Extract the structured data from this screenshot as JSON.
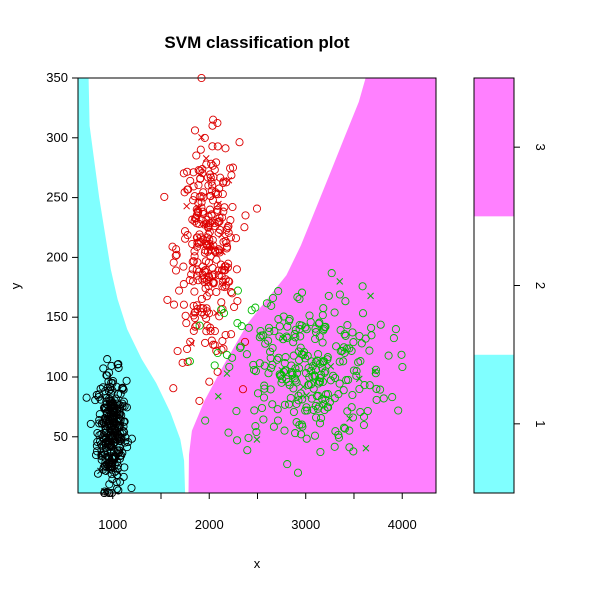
{
  "chart_data": {
    "type": "scatter",
    "title": "SVM classification plot",
    "xlabel": "x",
    "ylabel": "y",
    "xlim": [
      640,
      4350
    ],
    "ylim": [
      3,
      350
    ],
    "x_ticks": [
      1000,
      2000,
      3000,
      4000
    ],
    "y_ticks": [
      50,
      100,
      150,
      200,
      250,
      300,
      350
    ],
    "x_tick_labels": [
      "1000",
      "2000",
      "3000",
      "4000"
    ],
    "y_tick_labels": [
      "50",
      "100",
      "150",
      "200",
      "250",
      "300",
      "350"
    ],
    "region_colors": {
      "1": "#80FFFF",
      "2": "#FFFFFF",
      "3": "#FF80FF"
    },
    "decision_regions": {
      "class_1_boundary": [
        [
          750,
          350
        ],
        [
          760,
          310
        ],
        [
          810,
          280
        ],
        [
          860,
          250
        ],
        [
          920,
          220
        ],
        [
          980,
          190
        ],
        [
          1050,
          165
        ],
        [
          1150,
          140
        ],
        [
          1300,
          115
        ],
        [
          1450,
          95
        ],
        [
          1600,
          70
        ],
        [
          1700,
          48
        ],
        [
          1740,
          30
        ],
        [
          1750,
          3
        ]
      ],
      "class_3_boundary": [
        [
          3620,
          350
        ],
        [
          3550,
          330
        ],
        [
          3400,
          300
        ],
        [
          3250,
          270
        ],
        [
          3100,
          240
        ],
        [
          2950,
          210
        ],
        [
          2800,
          185
        ],
        [
          2600,
          165
        ],
        [
          2400,
          145
        ],
        [
          2150,
          110
        ],
        [
          1950,
          80
        ],
        [
          1820,
          55
        ],
        [
          1790,
          35
        ],
        [
          1785,
          3
        ]
      ]
    },
    "clusters": [
      {
        "name": "1",
        "color": "#000000",
        "n": 300,
        "mean": [
          990,
          55
        ],
        "sd": [
          75,
          24
        ],
        "x_range": [
          700,
          1250
        ],
        "y_range": [
          3,
          120
        ]
      },
      {
        "name": "2",
        "color": "#DD0000",
        "n": 300,
        "mean": [
          1990,
          205
        ],
        "sd": [
          160,
          45
        ],
        "x_range": [
          1400,
          2700
        ],
        "y_range": [
          80,
          350
        ]
      },
      {
        "name": "3",
        "color": "#00BB00",
        "n": 300,
        "mean": [
          3000,
          105
        ],
        "sd": [
          420,
          35
        ],
        "x_range": [
          1800,
          4300
        ],
        "y_range": [
          20,
          210
        ]
      }
    ],
    "support_vector_marker": "x",
    "legend": {
      "placement": "right",
      "levels": [
        "1",
        "2",
        "3"
      ],
      "colors": [
        "#80FFFF",
        "#FFFFFF",
        "#FF80FF"
      ]
    },
    "grid": false
  }
}
